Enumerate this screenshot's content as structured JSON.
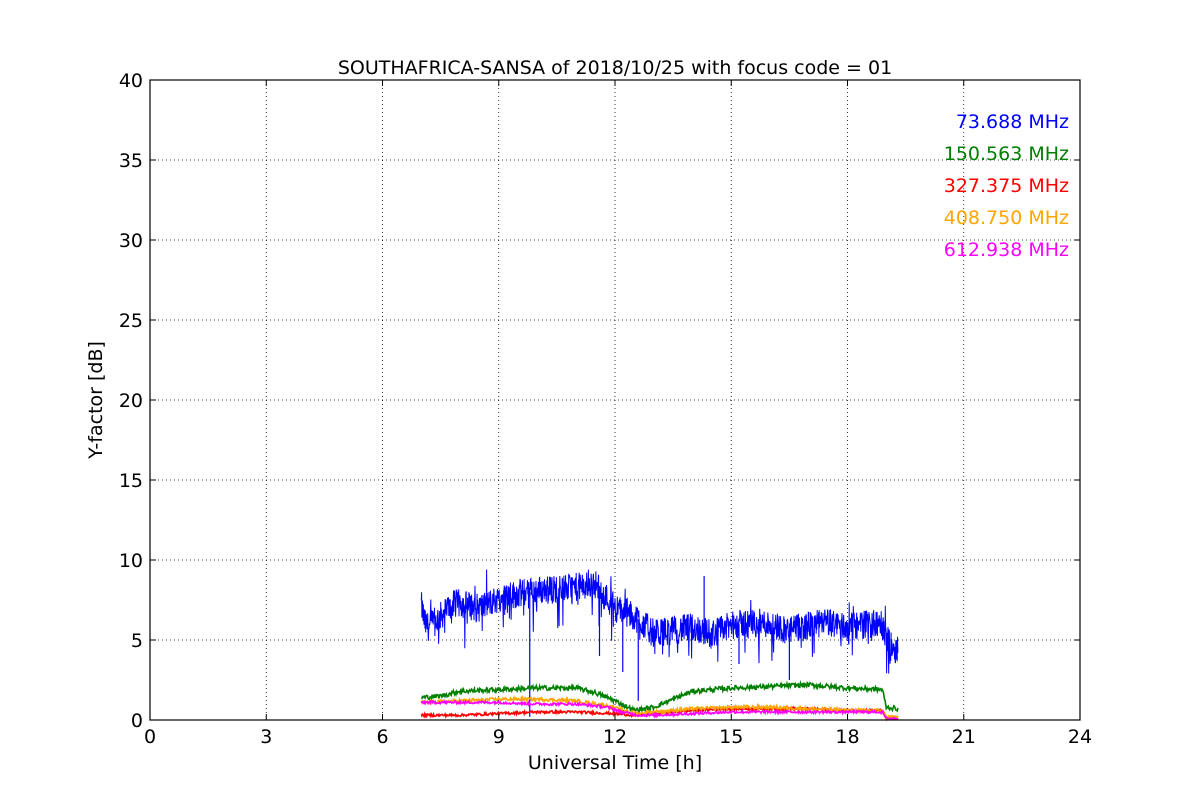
{
  "chart_data": {
    "type": "line",
    "title": "SOUTHAFRICA-SANSA of 2018/10/25 with focus code = 01",
    "xlabel": "Universal Time [h]",
    "ylabel": "Y-factor [dB]",
    "xlim": [
      0,
      24
    ],
    "ylim": [
      0,
      40
    ],
    "xticks": [
      0,
      3,
      6,
      9,
      12,
      15,
      18,
      21,
      24
    ],
    "yticks": [
      0,
      5,
      10,
      15,
      20,
      25,
      30,
      35,
      40
    ],
    "xtick_labels": [
      "0",
      "3",
      "6",
      "9",
      "12",
      "15",
      "18",
      "21",
      "24"
    ],
    "ytick_labels": [
      "0",
      "5",
      "10",
      "15",
      "20",
      "25",
      "30",
      "35",
      "40"
    ],
    "grid": true,
    "legend_position": "top-right",
    "series": [
      {
        "name": "73.688 MHz",
        "color": "#0000ff",
        "x": [
          7.0,
          7.1,
          7.2,
          7.5,
          7.8,
          8.0,
          8.5,
          9.0,
          9.5,
          10.0,
          10.5,
          11.0,
          11.5,
          11.8,
          12.0,
          12.3,
          12.6,
          13.0,
          13.5,
          14.0,
          14.5,
          15.0,
          15.5,
          16.0,
          16.5,
          17.0,
          17.5,
          18.0,
          18.5,
          18.9,
          19.1,
          19.3
        ],
        "y": [
          7.2,
          6.0,
          5.8,
          6.5,
          7.2,
          7.3,
          7.0,
          7.6,
          7.9,
          8.1,
          8.2,
          8.3,
          8.5,
          7.6,
          7.0,
          6.7,
          6.3,
          5.4,
          5.6,
          5.8,
          5.4,
          5.9,
          6.1,
          6.0,
          5.6,
          5.9,
          6.1,
          5.8,
          6.0,
          5.9,
          4.6,
          4.4
        ],
        "spike_x": [
          9.8,
          11.6,
          12.2,
          12.6,
          13.6,
          14.3,
          15.2,
          16.5
        ],
        "spike_y": [
          0.2,
          4.0,
          3.0,
          1.2,
          4.8,
          9.0,
          3.5,
          2.5
        ]
      },
      {
        "name": "150.563 MHz",
        "color": "#008000",
        "x": [
          7.0,
          7.5,
          8.0,
          9.0,
          10.0,
          11.0,
          11.5,
          12.0,
          12.5,
          13.0,
          13.5,
          14.0,
          15.0,
          16.0,
          17.0,
          18.0,
          18.9,
          19.0,
          19.3
        ],
        "y": [
          1.4,
          1.5,
          1.8,
          1.9,
          2.0,
          2.0,
          1.7,
          1.2,
          0.6,
          0.8,
          1.3,
          1.8,
          2.0,
          2.1,
          2.2,
          2.0,
          1.9,
          0.8,
          0.7
        ]
      },
      {
        "name": "327.375 MHz",
        "color": "#ff0000",
        "x": [
          7.0,
          8.0,
          9.0,
          10.0,
          11.0,
          12.0,
          12.5,
          13.0,
          14.0,
          15.0,
          16.0,
          17.0,
          18.0,
          18.9,
          19.0,
          19.3
        ],
        "y": [
          0.3,
          0.3,
          0.4,
          0.5,
          0.5,
          0.4,
          0.3,
          0.4,
          0.6,
          0.7,
          0.7,
          0.7,
          0.6,
          0.6,
          0.1,
          0.1
        ]
      },
      {
        "name": "408.750 MHz",
        "color": "#ffa500",
        "x": [
          7.0,
          8.0,
          9.0,
          10.0,
          11.0,
          11.8,
          12.2,
          12.6,
          13.0,
          14.0,
          15.0,
          16.0,
          17.0,
          18.0,
          18.9,
          19.0,
          19.3
        ],
        "y": [
          1.1,
          1.2,
          1.3,
          1.3,
          1.2,
          0.9,
          0.6,
          0.4,
          0.5,
          0.7,
          0.8,
          0.8,
          0.7,
          0.6,
          0.6,
          0.2,
          0.2
        ]
      },
      {
        "name": "612.938 MHz",
        "color": "#ff00ff",
        "x": [
          7.0,
          8.0,
          9.0,
          10.0,
          11.0,
          11.8,
          12.2,
          12.6,
          13.0,
          14.0,
          15.0,
          16.0,
          17.0,
          18.0,
          18.9,
          19.0,
          19.3
        ],
        "y": [
          1.1,
          1.1,
          1.1,
          1.0,
          1.0,
          0.8,
          0.5,
          0.3,
          0.3,
          0.4,
          0.5,
          0.5,
          0.5,
          0.5,
          0.5,
          0.1,
          0.1
        ]
      }
    ]
  }
}
